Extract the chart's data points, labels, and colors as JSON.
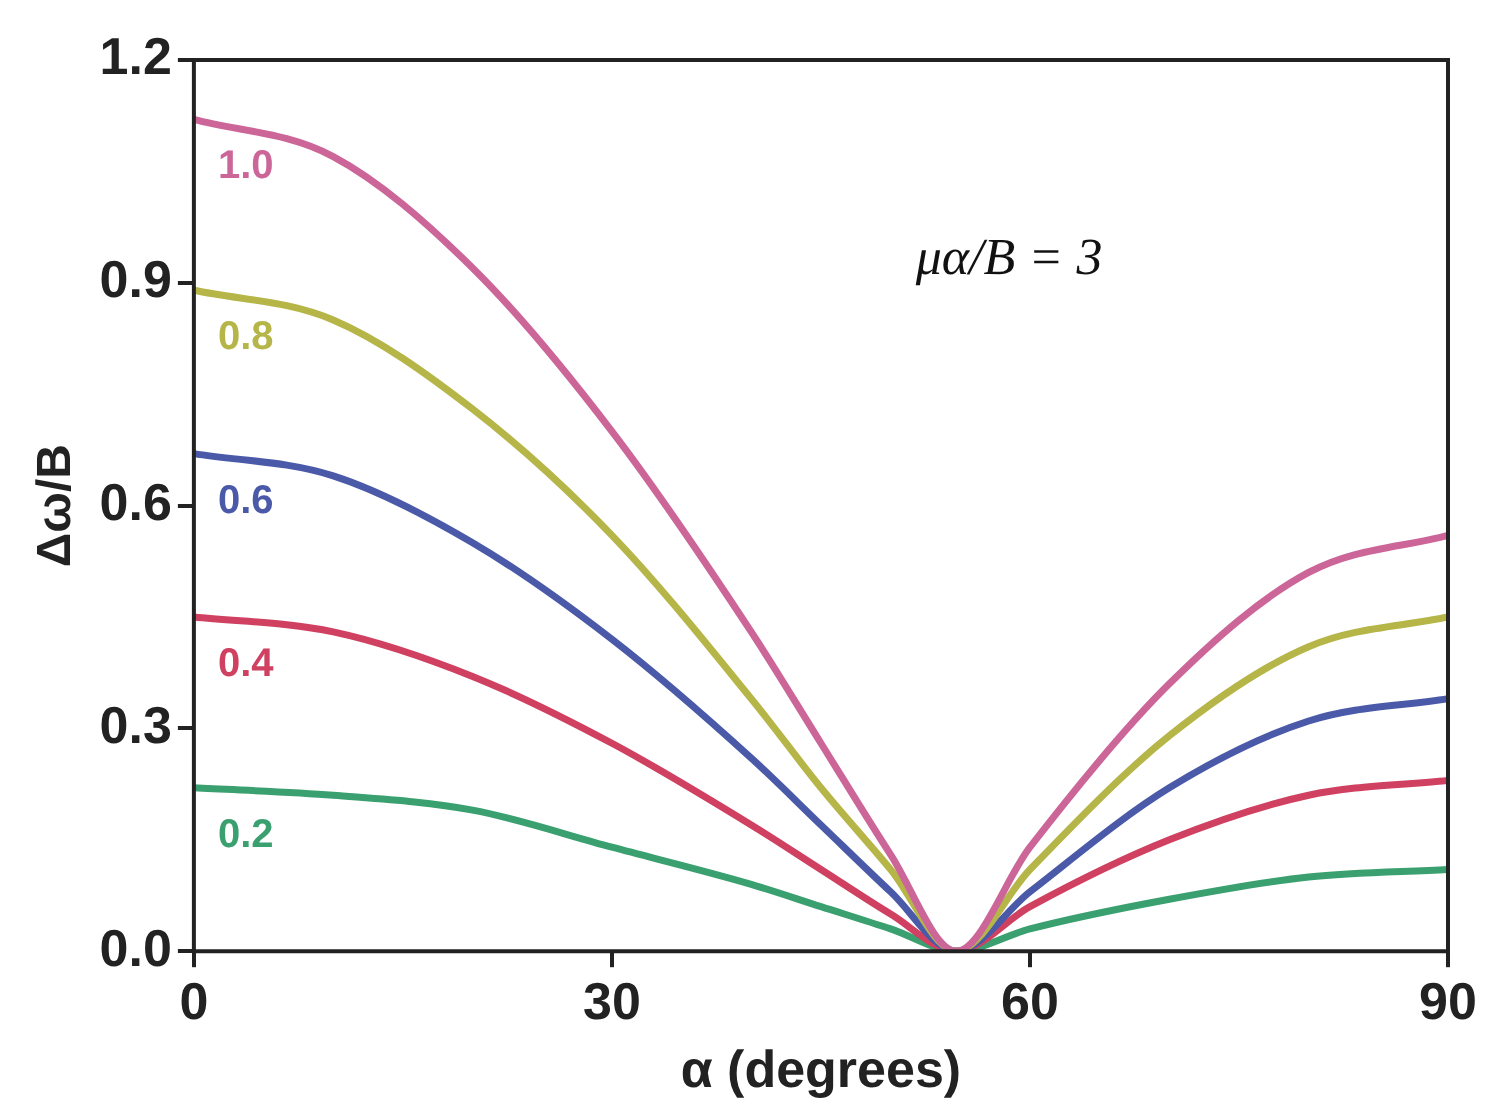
{
  "chart_data": {
    "type": "line",
    "xlabel": "α (degrees)",
    "ylabel": "Δω/B",
    "annotations": [
      "μα/B = 3"
    ],
    "x": [
      0,
      10,
      20,
      30,
      40,
      45,
      50,
      54.7,
      60,
      70,
      80,
      90
    ],
    "series": [
      {
        "name": "1.0",
        "color": "#cc6699",
        "values": [
          1.12,
          1.07,
          0.92,
          0.7,
          0.43,
          0.28,
          0.13,
          0,
          0.14,
          0.36,
          0.51,
          0.56
        ]
      },
      {
        "name": "0.8",
        "color": "#b5b548",
        "values": [
          0.89,
          0.85,
          0.73,
          0.56,
          0.34,
          0.22,
          0.11,
          0,
          0.11,
          0.29,
          0.41,
          0.45
        ]
      },
      {
        "name": "0.6",
        "color": "#4a5aa8",
        "values": [
          0.67,
          0.64,
          0.55,
          0.42,
          0.26,
          0.17,
          0.08,
          0,
          0.08,
          0.22,
          0.31,
          0.34
        ]
      },
      {
        "name": "0.4",
        "color": "#d04060",
        "values": [
          0.45,
          0.43,
          0.37,
          0.28,
          0.17,
          0.11,
          0.05,
          0,
          0.06,
          0.15,
          0.21,
          0.23
        ]
      },
      {
        "name": "0.2",
        "color": "#3aa070",
        "values": [
          0.22,
          0.21,
          0.19,
          0.14,
          0.09,
          0.06,
          0.03,
          0,
          0.03,
          0.07,
          0.1,
          0.11
        ]
      }
    ],
    "xlim": [
      0,
      90
    ],
    "xticks": [
      0,
      30,
      60,
      90
    ],
    "ylim": [
      0,
      1.2
    ],
    "yticks": [
      {
        "value": 0,
        "label": "0.0"
      },
      {
        "value": 0.3,
        "label": "0.3"
      },
      {
        "value": 0.6,
        "label": "0.6"
      },
      {
        "value": 0.9,
        "label": "0.9"
      },
      {
        "value": 1.2,
        "label": "1.2"
      }
    ],
    "grid": false,
    "legend": false,
    "marker": "none",
    "line_style": "solid"
  }
}
